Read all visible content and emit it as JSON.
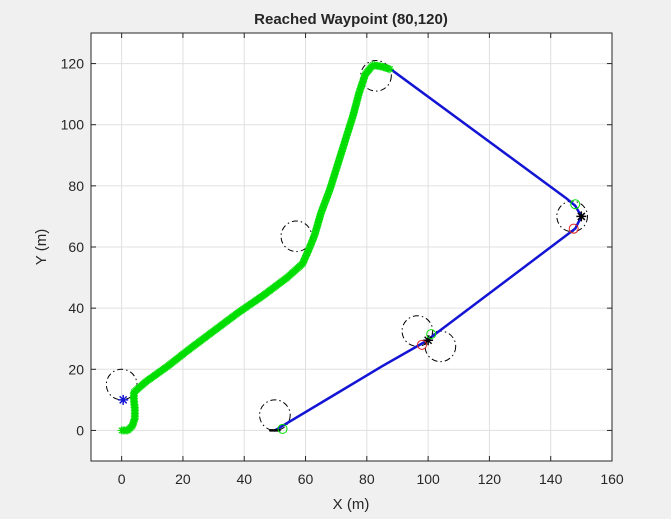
{
  "chart_data": {
    "type": "scatter",
    "title": "Reached Waypoint (80,120)",
    "xlabel": "X (m)",
    "ylabel": "Y (m)",
    "xlim": [
      -10,
      160
    ],
    "ylim": [
      -10,
      130
    ],
    "xticks": [
      0,
      20,
      40,
      60,
      80,
      100,
      120,
      140,
      160
    ],
    "yticks": [
      0,
      20,
      40,
      60,
      80,
      100,
      120
    ],
    "grid": true,
    "colors": {
      "traveled": "#00dd00",
      "planned": "#1414d4",
      "circle": "#000000",
      "goal_marker": "#00dd00",
      "obstacle_marker": "#e02020",
      "waypoint_marker": "#000000",
      "robot_marker": "#1414d4",
      "background": "#f0f0f0",
      "axes_background": "#ffffff",
      "grid": "#e0e0e0"
    },
    "series": [
      {
        "type": "traveled-path-markers",
        "points": [
          [
            0,
            0
          ],
          [
            2,
            0
          ],
          [
            3.5,
            1.5
          ],
          [
            4.3,
            4
          ],
          [
            4.3,
            7
          ],
          [
            4,
            10
          ],
          [
            4,
            12.5
          ],
          [
            8,
            16
          ],
          [
            15,
            21
          ],
          [
            22,
            26.5
          ],
          [
            30,
            32.5
          ],
          [
            38,
            38.5
          ],
          [
            46,
            44
          ],
          [
            54,
            50
          ],
          [
            59,
            54.5
          ],
          [
            61,
            59
          ],
          [
            63,
            64
          ],
          [
            65,
            71
          ],
          [
            68,
            79
          ],
          [
            70.5,
            87
          ],
          [
            73,
            95
          ],
          [
            75.5,
            103
          ],
          [
            77.5,
            110.5
          ],
          [
            79.5,
            116.5
          ],
          [
            82,
            119.5
          ],
          [
            85,
            119
          ],
          [
            88,
            118
          ]
        ]
      },
      {
        "type": "planned-path",
        "points": [
          [
            50,
            0
          ],
          [
            70,
            12
          ],
          [
            85,
            21
          ],
          [
            99,
            29
          ],
          [
            148,
            66
          ],
          [
            150,
            70
          ],
          [
            148,
            73.5
          ],
          [
            145,
            76
          ],
          [
            88,
            118
          ]
        ]
      },
      {
        "type": "planned-path-black",
        "points": [
          [
            48.5,
            0
          ],
          [
            51.5,
            0
          ]
        ]
      }
    ],
    "circles": [
      {
        "x": 0,
        "y": 15,
        "r": 5
      },
      {
        "x": 50,
        "y": 5,
        "r": 5
      },
      {
        "x": 57,
        "y": 63.5,
        "r": 5
      },
      {
        "x": 83,
        "y": 116,
        "r": 5
      },
      {
        "x": 147,
        "y": 70,
        "r": 5
      },
      {
        "x": 96.5,
        "y": 32.5,
        "r": 5
      },
      {
        "x": 104,
        "y": 27.5,
        "r": 5
      }
    ],
    "markers": [
      {
        "kind": "robot",
        "x": 0.5,
        "y": 10,
        "color": "#1414d4"
      },
      {
        "kind": "waypoint",
        "x": 150,
        "y": 70,
        "color": "#000000"
      },
      {
        "kind": "waypoint",
        "x": 100,
        "y": 29.5,
        "color": "#000000"
      },
      {
        "kind": "goal",
        "x": 148,
        "y": 74,
        "color": "#00dd00"
      },
      {
        "kind": "goal",
        "x": 101,
        "y": 31.5,
        "color": "#00dd00"
      },
      {
        "kind": "goal",
        "x": 52.5,
        "y": 0.5,
        "color": "#00dd00"
      },
      {
        "kind": "obstacle",
        "x": 147.5,
        "y": 66,
        "color": "#e02020"
      },
      {
        "kind": "obstacle",
        "x": 98,
        "y": 28,
        "color": "#e02020"
      }
    ]
  }
}
